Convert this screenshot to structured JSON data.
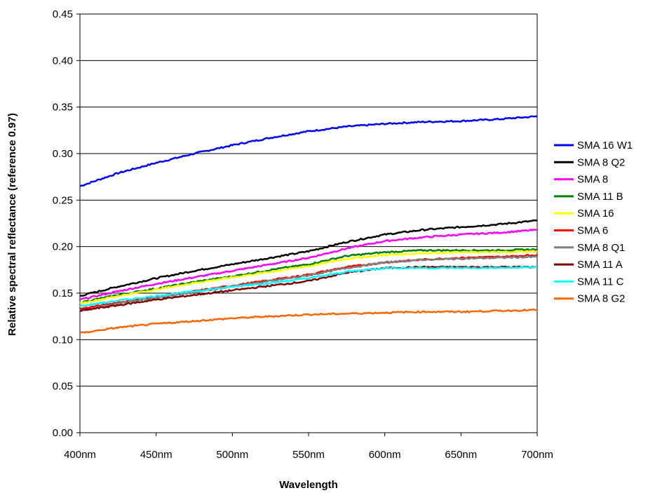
{
  "chart_data": {
    "type": "line",
    "title": "",
    "xlabel": "Wavelength",
    "ylabel": "Relative spectral reflectance (reference 0.97)",
    "xlim": [
      400,
      700
    ],
    "ylim": [
      0,
      0.45
    ],
    "x_ticks": [
      400,
      450,
      500,
      550,
      600,
      650,
      700
    ],
    "x_tick_labels": [
      "400nm",
      "450nm",
      "500nm",
      "550nm",
      "600nm",
      "650nm",
      "700nm"
    ],
    "y_ticks": [
      0,
      0.05,
      0.1,
      0.15,
      0.2,
      0.25,
      0.3,
      0.35,
      0.4,
      0.45
    ],
    "y_tick_labels": [
      "0.00",
      "0.05",
      "0.10",
      "0.15",
      "0.20",
      "0.25",
      "0.30",
      "0.35",
      "0.40",
      "0.45"
    ],
    "grid": "horizontal",
    "legend_position": "right",
    "x": [
      400,
      425,
      450,
      475,
      500,
      525,
      550,
      575,
      600,
      625,
      650,
      675,
      700
    ],
    "series": [
      {
        "name": "SMA 16 W1",
        "color": "#0000ff",
        "values": [
          0.265,
          0.279,
          0.29,
          0.3,
          0.309,
          0.317,
          0.324,
          0.329,
          0.332,
          0.334,
          0.335,
          0.337,
          0.34
        ]
      },
      {
        "name": "SMA 8 Q2",
        "color": "#000000",
        "values": [
          0.147,
          0.157,
          0.166,
          0.174,
          0.181,
          0.188,
          0.195,
          0.205,
          0.213,
          0.218,
          0.221,
          0.224,
          0.228
        ]
      },
      {
        "name": "SMA 8",
        "color": "#ff00ff",
        "values": [
          0.143,
          0.152,
          0.16,
          0.167,
          0.174,
          0.181,
          0.188,
          0.198,
          0.206,
          0.21,
          0.213,
          0.215,
          0.218
        ]
      },
      {
        "name": "SMA 11 B",
        "color": "#008000",
        "values": [
          0.14,
          0.148,
          0.155,
          0.162,
          0.168,
          0.175,
          0.181,
          0.19,
          0.194,
          0.196,
          0.196,
          0.196,
          0.197
        ]
      },
      {
        "name": "SMA 16",
        "color": "#ffff00",
        "values": [
          0.139,
          0.147,
          0.154,
          0.161,
          0.167,
          0.173,
          0.179,
          0.187,
          0.191,
          0.193,
          0.194,
          0.194,
          0.195
        ]
      },
      {
        "name": "SMA 6",
        "color": "#ff0000",
        "values": [
          0.133,
          0.14,
          0.146,
          0.152,
          0.158,
          0.164,
          0.17,
          0.178,
          0.183,
          0.186,
          0.188,
          0.189,
          0.191
        ]
      },
      {
        "name": "SMA 8 Q1",
        "color": "#808080",
        "values": [
          0.131,
          0.139,
          0.145,
          0.151,
          0.157,
          0.163,
          0.169,
          0.177,
          0.183,
          0.186,
          0.187,
          0.188,
          0.189
        ]
      },
      {
        "name": "SMA 11 A",
        "color": "#800000",
        "values": [
          0.131,
          0.137,
          0.143,
          0.148,
          0.153,
          0.158,
          0.163,
          0.172,
          0.177,
          0.178,
          0.178,
          0.178,
          0.178
        ]
      },
      {
        "name": "SMA 11 C",
        "color": "#00ffff",
        "values": [
          0.136,
          0.142,
          0.147,
          0.152,
          0.157,
          0.161,
          0.166,
          0.173,
          0.177,
          0.177,
          0.177,
          0.177,
          0.178
        ]
      },
      {
        "name": "SMA 8 G2",
        "color": "#ff6600",
        "values": [
          0.107,
          0.113,
          0.117,
          0.12,
          0.123,
          0.125,
          0.127,
          0.128,
          0.129,
          0.13,
          0.13,
          0.131,
          0.132
        ]
      }
    ]
  }
}
